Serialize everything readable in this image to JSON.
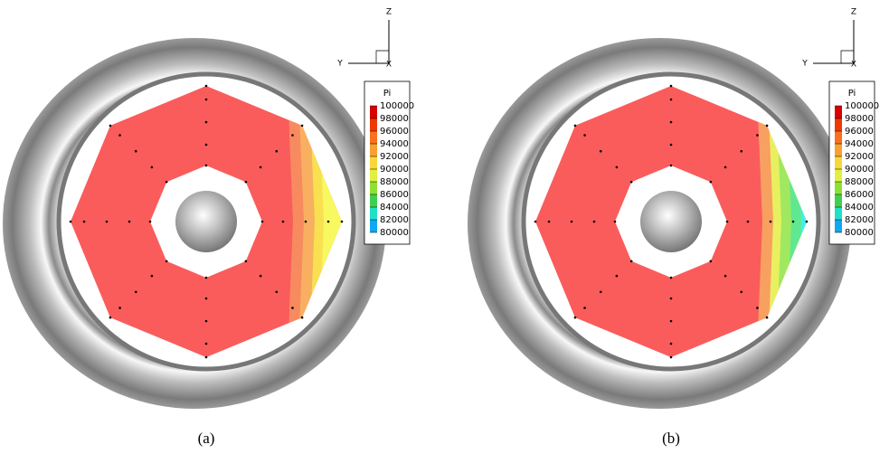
{
  "panels": [
    {
      "caption": "(a)",
      "axes": {
        "z": "Z",
        "y": "Y",
        "x": "X"
      },
      "legend": {
        "title": "Pi",
        "levels": [
          100000,
          98000,
          96000,
          94000,
          92000,
          90000,
          88000,
          86000,
          84000,
          82000,
          80000
        ]
      }
    },
    {
      "caption": "(b)",
      "axes": {
        "z": "Z",
        "y": "Y",
        "x": "X"
      },
      "legend": {
        "title": "Pi",
        "levels": [
          100000,
          98000,
          96000,
          94000,
          92000,
          90000,
          88000,
          86000,
          84000,
          82000,
          80000
        ]
      }
    }
  ]
}
